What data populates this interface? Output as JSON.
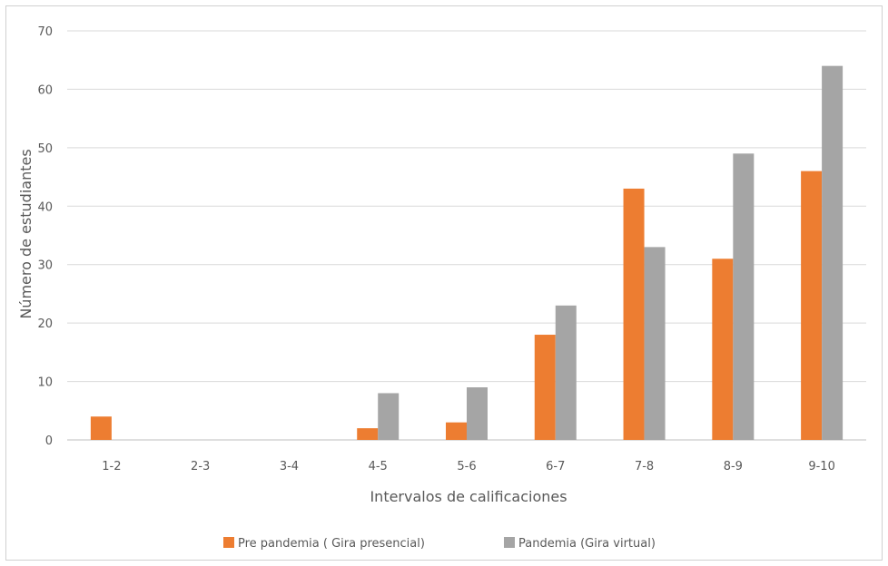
{
  "chart_data": {
    "type": "bar",
    "title": "",
    "xlabel": "Intervalos de calificaciones",
    "ylabel": "Número de estudiantes",
    "ylim": [
      0,
      70
    ],
    "yticks": [
      0,
      10,
      20,
      30,
      40,
      50,
      60,
      70
    ],
    "grid": true,
    "legend_position": "bottom",
    "categories": [
      "1-2",
      "2-3",
      "3-4",
      "4-5",
      "5-6",
      "6-7",
      "7-8",
      "8-9",
      "9-10"
    ],
    "series": [
      {
        "name": "Pre pandemia ( Gira presencial)",
        "color": "#ED7D31",
        "values": [
          4,
          0,
          0,
          2,
          3,
          18,
          43,
          31,
          46
        ]
      },
      {
        "name": "Pandemia (Gira virtual)",
        "color": "#A5A5A5",
        "values": [
          0,
          0,
          0,
          8,
          9,
          23,
          33,
          49,
          64
        ]
      }
    ]
  }
}
